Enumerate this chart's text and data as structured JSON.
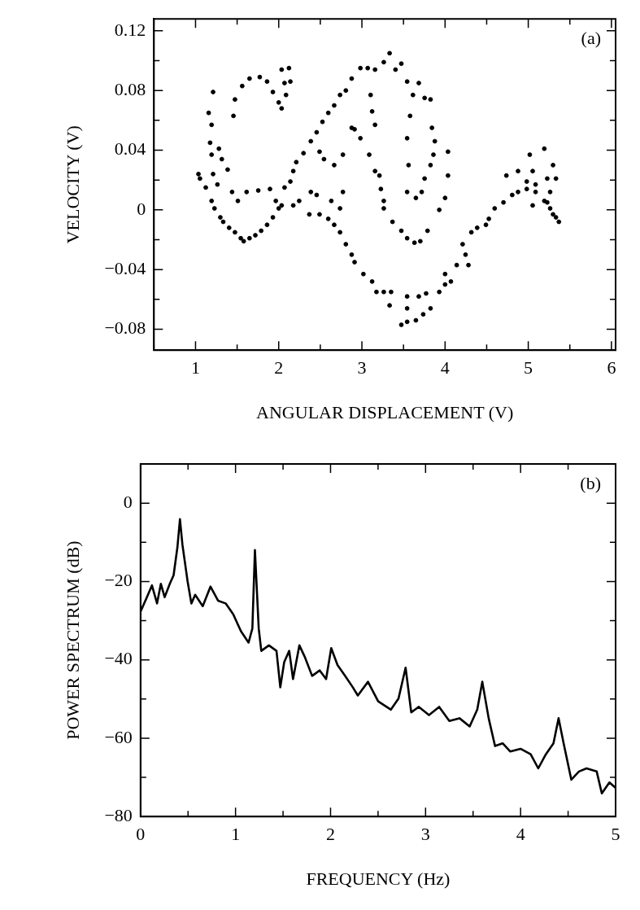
{
  "chart_data": [
    {
      "type": "scatter",
      "xlabel": "ANGULAR DISPLACEMENT (V)",
      "ylabel": "VELOCITY (V)",
      "annotations": [
        "(a)"
      ],
      "grid": false,
      "legend": false,
      "marker": "circle",
      "xlim": [
        0.5,
        6.05
      ],
      "xticks": [
        {
          "value": 0.5,
          "label": null
        },
        1,
        {
          "value": 1.5,
          "label": null
        },
        2,
        {
          "value": 2.5,
          "label": null
        },
        3,
        {
          "value": 3.5,
          "label": null
        },
        4,
        {
          "value": 4.5,
          "label": null
        },
        5,
        {
          "value": 5.5,
          "label": null
        },
        6
      ],
      "ylim": [
        -0.094,
        0.128
      ],
      "yticks": [
        -0.08,
        {
          "value": -0.06,
          "label": null
        },
        -0.04,
        {
          "value": -0.02,
          "label": null
        },
        0,
        {
          "value": 0.02,
          "label": null
        },
        0.04,
        {
          "value": 0.06,
          "label": null
        },
        0.08,
        {
          "value": 0.1,
          "label": null
        },
        0.12
      ],
      "series": [
        {
          "color": "#000000",
          "x": [
            1.035,
            1.053,
            1.123,
            1.158,
            1.193,
            1.211,
            1.175,
            1.193,
            1.211,
            1.263,
            1.193,
            1.228,
            1.298,
            1.333,
            1.404,
            1.474,
            1.544,
            1.579,
            1.649,
            1.719,
            1.789,
            1.86,
            1.93,
            2.0,
            2.035,
            1.281,
            1.316,
            1.386,
            1.439,
            1.509,
            1.614,
            1.754,
            1.895,
            1.965,
            1.474,
            1.456,
            1.561,
            1.649,
            1.772,
            1.86,
            1.93,
            2.0,
            2.035,
            2.088,
            2.14,
            2.123,
            2.035,
            2.07,
            2.07,
            2.14,
            2.175,
            2.211,
            2.298,
            2.386,
            2.456,
            2.526,
            2.596,
            2.667,
            2.737,
            2.807,
            2.877,
            2.982,
            3.07,
            3.158,
            3.263,
            3.333,
            3.404,
            3.474,
            3.544,
            3.614,
            3.684,
            3.754,
            3.825,
            3.842,
            3.877,
            3.86,
            3.825,
            3.754,
            3.719,
            3.649,
            3.544,
            3.561,
            3.544,
            3.579,
            2.386,
            2.456,
            2.246,
            2.175,
            2.368,
            2.491,
            2.596,
            2.667,
            2.737,
            2.807,
            2.877,
            2.912,
            3.018,
            3.123,
            3.175,
            3.263,
            3.351,
            3.333,
            3.544,
            3.544,
            3.684,
            3.772,
            3.474,
            3.544,
            3.649,
            3.737,
            3.825,
            3.93,
            4.0,
            4.0,
            2.737,
            2.772,
            2.632,
            2.912,
            2.982,
            2.877,
            2.772,
            2.667,
            2.491,
            2.544,
            3.158,
            3.123,
            3.105,
            3.088,
            3.158,
            3.211,
            3.228,
            3.263,
            3.263,
            3.368,
            3.474,
            3.544,
            3.632,
            3.702,
            3.789,
            3.93,
            4.035,
            4.035,
            4.0,
            4.211,
            4.316,
            4.386,
            4.491,
            4.526,
            4.596,
            4.702,
            4.807,
            4.877,
            4.982,
            5.088,
            5.193,
            5.263,
            5.333,
            5.368,
            5.298,
            5.228,
            4.737,
            4.877,
            5.018,
            5.193,
            5.298,
            5.333,
            5.053,
            4.982,
            5.088,
            5.228,
            4.246,
            4.281,
            4.14,
            4.07,
            5.053,
            5.263
          ],
          "values": [
            0.024,
            0.021,
            0.015,
            0.065,
            0.057,
            0.079,
            0.045,
            0.037,
            0.024,
            0.017,
            0.006,
            0.001,
            -0.005,
            -0.008,
            -0.012,
            -0.015,
            -0.019,
            -0.021,
            -0.019,
            -0.017,
            -0.014,
            -0.01,
            -0.005,
            0.001,
            0.003,
            0.041,
            0.034,
            0.027,
            0.012,
            0.006,
            0.012,
            0.013,
            0.014,
            0.006,
            0.074,
            0.063,
            0.083,
            0.088,
            0.089,
            0.086,
            0.079,
            0.072,
            0.068,
            0.077,
            0.086,
            0.095,
            0.094,
            0.085,
            0.015,
            0.019,
            0.026,
            0.032,
            0.038,
            0.046,
            0.052,
            0.059,
            0.065,
            0.07,
            0.077,
            0.08,
            0.088,
            0.095,
            0.095,
            0.094,
            0.099,
            0.105,
            0.094,
            0.098,
            0.086,
            0.077,
            0.085,
            0.075,
            0.074,
            0.055,
            0.046,
            0.037,
            0.03,
            0.021,
            0.012,
            0.008,
            0.012,
            0.03,
            0.048,
            0.063,
            0.012,
            0.01,
            0.006,
            0.003,
            -0.003,
            -0.003,
            -0.006,
            -0.01,
            -0.015,
            -0.023,
            -0.03,
            -0.035,
            -0.043,
            -0.048,
            -0.055,
            -0.055,
            -0.055,
            -0.064,
            -0.058,
            -0.066,
            -0.058,
            -0.056,
            -0.077,
            -0.075,
            -0.074,
            -0.07,
            -0.066,
            -0.055,
            -0.043,
            -0.05,
            0.001,
            0.012,
            0.006,
            0.054,
            0.048,
            0.055,
            0.037,
            0.03,
            0.039,
            0.034,
            0.057,
            0.066,
            0.077,
            0.037,
            0.026,
            0.023,
            0.014,
            0.006,
            0.001,
            -0.008,
            -0.014,
            -0.019,
            -0.022,
            -0.021,
            -0.014,
            0.0,
            0.039,
            0.023,
            0.008,
            -0.023,
            -0.015,
            -0.012,
            -0.01,
            -0.006,
            0.001,
            0.005,
            0.01,
            0.012,
            0.014,
            0.012,
            0.006,
            0.001,
            -0.005,
            -0.008,
            -0.003,
            0.005,
            0.023,
            0.026,
            0.037,
            0.041,
            0.03,
            0.021,
            0.026,
            0.019,
            0.017,
            0.021,
            -0.03,
            -0.037,
            -0.037,
            -0.048,
            0.003,
            0.012
          ]
        }
      ]
    },
    {
      "type": "line",
      "xlabel": "FREQUENCY (Hz)",
      "ylabel": "POWER SPECTRUM (dB)",
      "annotations": [
        "(b)"
      ],
      "grid": false,
      "legend": false,
      "marker": "none",
      "line_style": "solid",
      "xlim": [
        0,
        5
      ],
      "xticks": [
        0,
        {
          "value": 0.5,
          "label": null
        },
        1,
        {
          "value": 1.5,
          "label": null
        },
        2,
        {
          "value": 2.5,
          "label": null
        },
        3,
        {
          "value": 3.5,
          "label": null
        },
        4,
        {
          "value": 4.5,
          "label": null
        },
        5
      ],
      "ylim": [
        -80,
        10
      ],
      "yticks": [
        -80,
        {
          "value": -70,
          "label": null
        },
        -60,
        {
          "value": -50,
          "label": null
        },
        -40,
        {
          "value": -30,
          "label": null
        },
        -20,
        {
          "value": -10,
          "label": null
        },
        0
      ],
      "series": [
        {
          "color": "#000000",
          "x": [
            0,
            0.067,
            0.12,
            0.174,
            0.214,
            0.254,
            0.308,
            0.348,
            0.388,
            0.415,
            0.441,
            0.495,
            0.535,
            0.575,
            0.655,
            0.736,
            0.816,
            0.896,
            0.976,
            1.057,
            1.137,
            1.177,
            1.204,
            1.244,
            1.271,
            1.351,
            1.431,
            1.471,
            1.512,
            1.565,
            1.605,
            1.672,
            1.726,
            1.806,
            1.886,
            1.953,
            2.007,
            2.073,
            2.154,
            2.234,
            2.287,
            2.394,
            2.501,
            2.635,
            2.715,
            2.79,
            2.849,
            2.929,
            3.036,
            3.143,
            3.25,
            3.357,
            3.464,
            3.544,
            3.597,
            3.664,
            3.731,
            3.811,
            3.892,
            3.999,
            4.106,
            4.186,
            4.266,
            4.346,
            4.4,
            4.453,
            4.534,
            4.614,
            4.694,
            4.801,
            4.855,
            4.935,
            5.0
          ],
          "values": [
            -27.7,
            -24,
            -21,
            -25.6,
            -20.6,
            -24,
            -20.6,
            -18.4,
            -11.3,
            -4.1,
            -10.6,
            -19.9,
            -25.6,
            -23.4,
            -26.3,
            -21.3,
            -24.9,
            -25.6,
            -28.4,
            -32.7,
            -35.6,
            -32,
            -12,
            -32,
            -37.7,
            -36.3,
            -37.7,
            -47,
            -40.6,
            -37.7,
            -44.9,
            -36.3,
            -39.1,
            -44.1,
            -42.7,
            -44.9,
            -37,
            -41.3,
            -44.1,
            -47,
            -49.1,
            -45.6,
            -50.6,
            -52.7,
            -49.9,
            -42,
            -53.4,
            -52,
            -54.1,
            -52,
            -55.6,
            -54.9,
            -57,
            -52.7,
            -45.6,
            -54.9,
            -62,
            -61.3,
            -63.4,
            -62.7,
            -64.1,
            -67.7,
            -64.1,
            -61.3,
            -54.9,
            -61.3,
            -70.6,
            -68.5,
            -67.7,
            -68.5,
            -74.1,
            -71.3,
            -72.7
          ]
        }
      ]
    }
  ]
}
